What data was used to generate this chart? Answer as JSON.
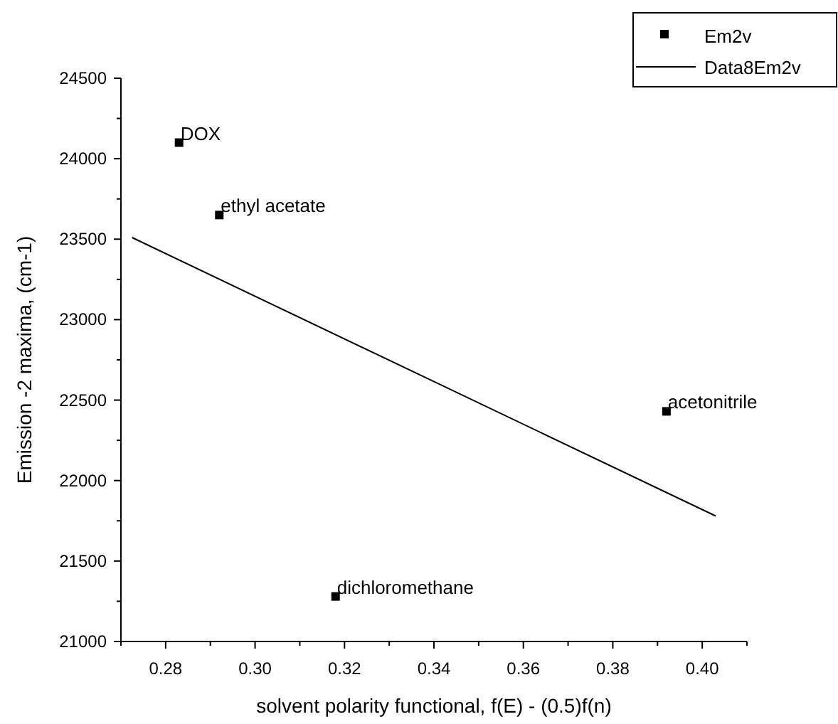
{
  "chart_data": {
    "type": "scatter",
    "xlabel": "solvent polarity functional, f(E) - (0.5)f(n)",
    "ylabel": "Emission -2 maxima, (cm-1)",
    "xlim": [
      0.27,
      0.41
    ],
    "xticks": [
      {
        "value": 0.27,
        "label": null
      },
      {
        "value": 0.28,
        "label": "0.28"
      },
      {
        "value": 0.29,
        "label": null
      },
      {
        "value": 0.3,
        "label": "0.30"
      },
      {
        "value": 0.31,
        "label": null
      },
      {
        "value": 0.32,
        "label": "0.32"
      },
      {
        "value": 0.33,
        "label": null
      },
      {
        "value": 0.34,
        "label": "0.34"
      },
      {
        "value": 0.35,
        "label": null
      },
      {
        "value": 0.36,
        "label": "0.36"
      },
      {
        "value": 0.37,
        "label": null
      },
      {
        "value": 0.38,
        "label": "0.38"
      },
      {
        "value": 0.39,
        "label": null
      },
      {
        "value": 0.4,
        "label": "0.40"
      },
      {
        "value": 0.41,
        "label": null
      }
    ],
    "ylim": [
      21000,
      24500
    ],
    "yticks": [
      21000,
      {
        "value": 21250,
        "label": null
      },
      21500,
      {
        "value": 21750,
        "label": null
      },
      22000,
      {
        "value": 22250,
        "label": null
      },
      22500,
      {
        "value": 22750,
        "label": null
      },
      23000,
      {
        "value": 23250,
        "label": null
      },
      23500,
      {
        "value": 23750,
        "label": null
      },
      24000,
      {
        "value": 24250,
        "label": null
      },
      24500
    ],
    "series": [
      {
        "name": "Em2v",
        "color": "#000000",
        "marker": "square",
        "x": [
          0.283,
          0.292,
          0.318,
          0.392
        ],
        "values": [
          24100,
          23650,
          21280,
          22430
        ]
      },
      {
        "name": "Data8Em2v",
        "type": "line",
        "color": "#000000",
        "marker": "none",
        "line_style": "solid",
        "x": [
          0.2725,
          0.403
        ],
        "values": [
          23510,
          21780
        ]
      }
    ],
    "annotations": [
      {
        "text": "DOX",
        "x": 0.283,
        "y": 24100
      },
      {
        "text": "ethyl acetate",
        "x": 0.292,
        "y": 23650
      },
      {
        "text": "dichloromethane",
        "x": 0.318,
        "y": 21280
      },
      {
        "text": "acetonitrile",
        "x": 0.392,
        "y": 22430
      }
    ],
    "grid": false,
    "legend": "top right"
  }
}
